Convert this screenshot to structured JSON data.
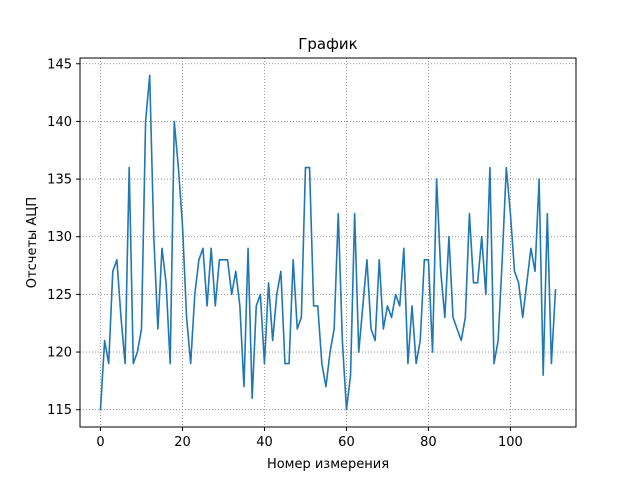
{
  "chart_data": {
    "type": "line",
    "title": "График",
    "xlabel": "Номер измерения",
    "ylabel": "Отсчеты АЦП",
    "xlim": [
      -5,
      116
    ],
    "ylim": [
      113.5,
      145.5
    ],
    "xticks": [
      0,
      20,
      40,
      60,
      80,
      100
    ],
    "yticks": [
      115,
      120,
      125,
      130,
      135,
      140,
      145
    ],
    "grid": true,
    "grid_style": "dotted",
    "legend": "none",
    "series": [
      {
        "color": "#1f77b4",
        "x": [
          0,
          1,
          2,
          3,
          4,
          5,
          6,
          7,
          8,
          9,
          10,
          11,
          12,
          13,
          14,
          15,
          16,
          17,
          18,
          19,
          20,
          21,
          22,
          23,
          24,
          25,
          26,
          27,
          28,
          29,
          30,
          31,
          32,
          33,
          34,
          35,
          36,
          37,
          38,
          39,
          40,
          41,
          42,
          43,
          44,
          45,
          46,
          47,
          48,
          49,
          50,
          51,
          52,
          53,
          54,
          55,
          56,
          57,
          58,
          59,
          60,
          61,
          62,
          63,
          64,
          65,
          66,
          67,
          68,
          69,
          70,
          71,
          72,
          73,
          74,
          75,
          76,
          77,
          78,
          79,
          80,
          81,
          82,
          83,
          84,
          85,
          86,
          87,
          88,
          89,
          90,
          91,
          92,
          93,
          94,
          95,
          96,
          97,
          98,
          99,
          100,
          101,
          102,
          103,
          104,
          105,
          106,
          107,
          108,
          109,
          110,
          111
        ],
        "y": [
          115,
          121,
          119,
          127,
          128,
          123,
          119,
          136,
          119,
          120,
          122,
          140,
          144,
          130,
          122,
          129,
          126,
          119,
          140,
          136,
          131,
          123,
          119,
          125,
          128,
          129,
          124,
          129,
          124,
          128,
          128,
          128,
          125,
          127,
          124,
          117,
          129,
          116,
          124,
          125,
          119,
          126,
          121,
          125,
          127,
          119,
          119,
          128,
          122,
          123,
          136,
          136,
          124,
          124,
          119,
          117,
          120,
          122,
          132,
          121,
          115,
          118,
          132,
          120,
          124,
          128,
          122,
          121,
          128,
          122,
          124,
          123,
          125,
          124,
          129,
          119,
          124,
          119,
          121,
          128,
          128,
          120,
          135,
          127,
          123,
          130,
          123,
          122,
          121,
          123,
          132,
          126,
          126,
          130,
          125,
          136,
          119,
          121,
          128,
          136,
          132,
          127,
          126,
          123,
          126,
          129,
          127,
          135,
          118,
          132,
          119,
          125.4
        ]
      }
    ]
  }
}
